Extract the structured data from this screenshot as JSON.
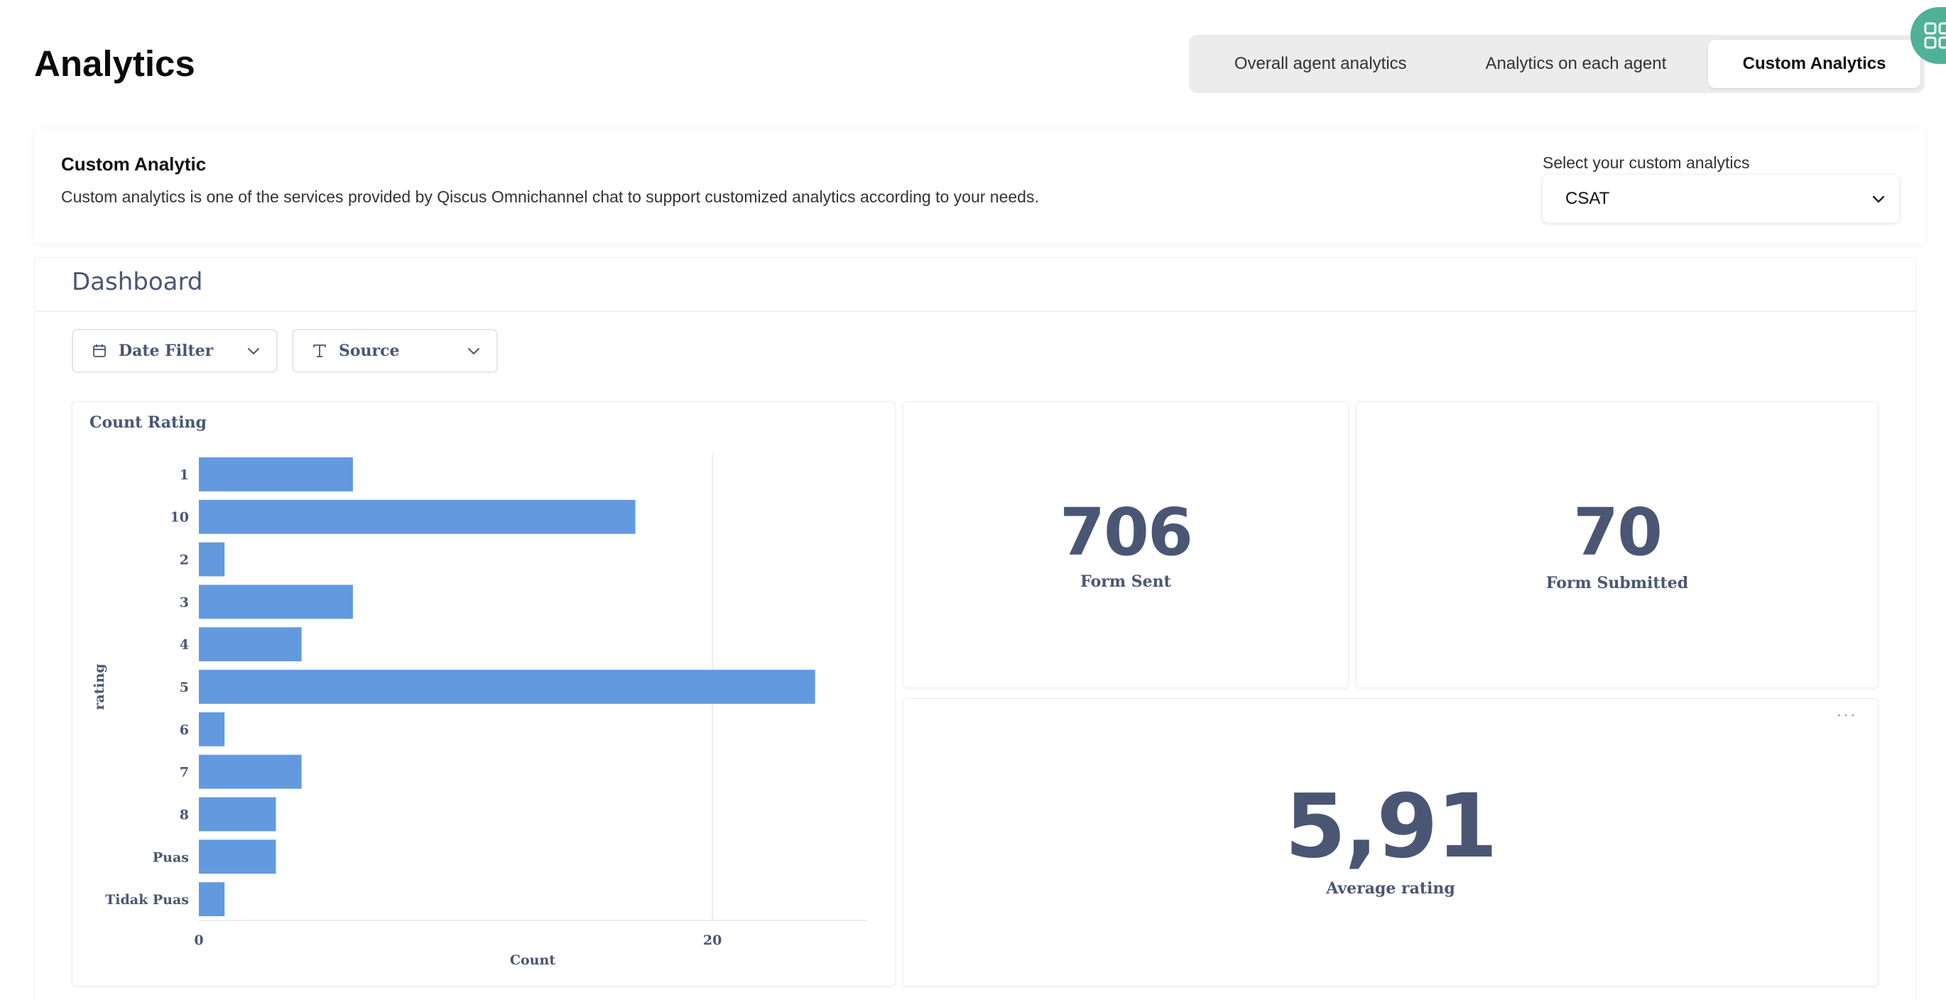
{
  "page": {
    "title": "Analytics"
  },
  "tabs": [
    {
      "label": "Overall agent analytics",
      "active": false
    },
    {
      "label": "Analytics on each agent",
      "active": false
    },
    {
      "label": "Custom Analytics",
      "active": true
    }
  ],
  "custom_analytic": {
    "title": "Custom Analytic",
    "description": "Custom analytics is one of the services provided by Qiscus Omnichannel chat to support customized analytics according to your needs.",
    "select_label": "Select your custom analytics",
    "selected": "CSAT"
  },
  "dashboard": {
    "title": "Dashboard",
    "filters": {
      "date": "Date Filter",
      "source": "Source"
    },
    "stats": {
      "form_sent": {
        "value": "706",
        "label": "Form Sent"
      },
      "form_submitted": {
        "value": "70",
        "label": "Form Submitted"
      },
      "average_rating": {
        "value": "5,91",
        "label": "Average rating"
      }
    }
  },
  "colors": {
    "bar": "#6399de",
    "text_muted": "#4a5673",
    "accent_green": "#4fb196"
  },
  "chart_data": {
    "type": "bar",
    "orientation": "horizontal",
    "title": "Count Rating",
    "xlabel": "Count",
    "ylabel": "rating",
    "categories": [
      "1",
      "10",
      "2",
      "3",
      "4",
      "5",
      "6",
      "7",
      "8",
      "Puas",
      "Tidak Puas"
    ],
    "values": [
      6,
      17,
      1,
      6,
      4,
      24,
      1,
      4,
      3,
      3,
      1
    ],
    "xlim": [
      0,
      26
    ],
    "xticks": [
      0,
      20
    ],
    "grid": true
  }
}
